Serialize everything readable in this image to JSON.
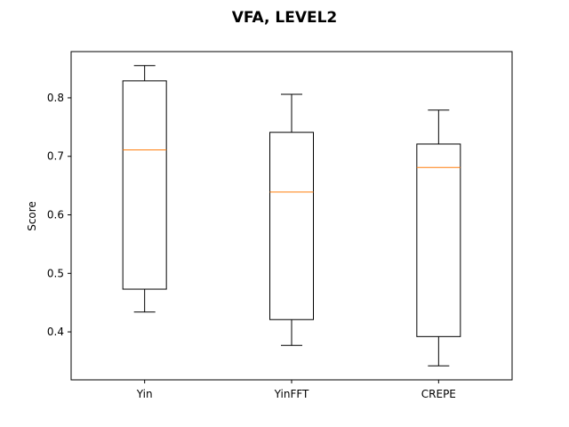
{
  "chart_data": {
    "type": "box",
    "title": "VFA, LEVEL2",
    "xlabel": "",
    "ylabel": "Score",
    "categories": [
      "Yin",
      "YinFFT",
      "CREPE"
    ],
    "boxes": [
      {
        "category": "Yin",
        "whisker_low": 0.434,
        "q1": 0.473,
        "median": 0.711,
        "q3": 0.829,
        "whisker_high": 0.855
      },
      {
        "category": "YinFFT",
        "whisker_low": 0.377,
        "q1": 0.421,
        "median": 0.639,
        "q3": 0.741,
        "whisker_high": 0.806
      },
      {
        "category": "CREPE",
        "whisker_low": 0.342,
        "q1": 0.392,
        "median": 0.681,
        "q3": 0.721,
        "whisker_high": 0.779
      }
    ],
    "ylim": [
      0.318,
      0.879
    ],
    "yticks": [
      0.4,
      0.5,
      0.6,
      0.7,
      0.8
    ],
    "ytick_labels": [
      "0.4",
      "0.5",
      "0.6",
      "0.7",
      "0.8"
    ],
    "grid": false,
    "colors": {
      "box": "#000000",
      "median": "#ff7f0e"
    }
  }
}
